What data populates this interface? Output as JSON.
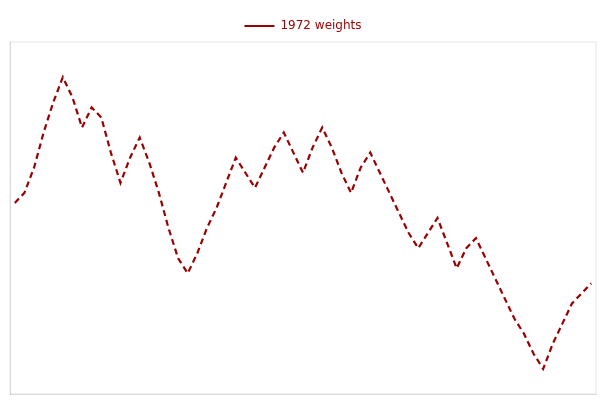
{
  "chart_data": {
    "type": "line",
    "x": [
      0,
      1,
      2,
      3,
      4,
      5,
      6,
      7,
      8,
      9,
      10,
      11,
      12,
      13,
      14,
      15,
      16,
      17,
      18,
      19,
      20,
      21,
      22,
      23,
      24,
      25,
      26,
      27,
      28,
      29,
      30,
      31,
      32,
      33,
      34,
      35,
      36,
      37,
      38,
      39,
      40,
      41,
      42,
      43,
      44,
      45,
      46,
      47,
      48,
      49,
      50,
      51,
      52,
      53,
      54,
      55,
      56,
      57,
      58,
      59,
      60
    ],
    "series": [
      {
        "name": "1972 weights",
        "color": "#990000",
        "line_style": "dashed",
        "values": [
          6.8,
          7.0,
          7.5,
          8.2,
          8.8,
          9.3,
          8.9,
          8.3,
          8.7,
          8.5,
          7.8,
          7.2,
          7.7,
          8.1,
          7.6,
          7.0,
          6.3,
          5.7,
          5.4,
          5.8,
          6.3,
          6.7,
          7.2,
          7.7,
          7.4,
          7.1,
          7.5,
          7.9,
          8.2,
          7.8,
          7.4,
          7.9,
          8.3,
          7.9,
          7.4,
          7.0,
          7.5,
          7.8,
          7.4,
          7.0,
          6.6,
          6.2,
          5.9,
          6.2,
          6.5,
          6.0,
          5.5,
          5.9,
          6.1,
          5.7,
          5.3,
          4.9,
          4.5,
          4.2,
          3.8,
          3.5,
          4.0,
          4.4,
          4.8,
          5.0,
          5.2
        ]
      }
    ],
    "xlim": [
      -0.5,
      60.5
    ],
    "ylim": [
      3.0,
      10.0
    ],
    "grid": false,
    "tick_labels": false,
    "legend": "upper center"
  }
}
